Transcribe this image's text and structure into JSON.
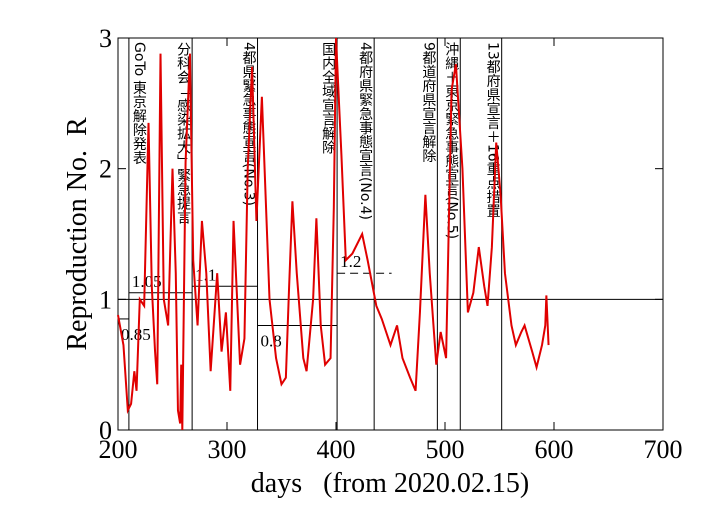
{
  "chart_data": {
    "type": "line",
    "xlabel": "days   (from 2020.02.15)",
    "ylabel": "Reproduction No.  R",
    "xlim": [
      200,
      700
    ],
    "xticks": [
      200,
      300,
      400,
      500,
      600,
      700
    ],
    "ylim": [
      0,
      3
    ],
    "yticks": [
      0,
      1,
      2,
      3
    ],
    "reference_line": 1,
    "series": [
      {
        "color": "#e00000",
        "x": [
          200,
          205,
          209,
          212,
          215,
          217,
          220,
          224,
          228,
          231,
          234,
          236,
          239,
          242,
          246,
          250,
          253,
          255,
          257,
          258,
          259,
          262,
          266,
          269,
          273,
          277,
          281,
          285,
          291,
          295,
          299,
          303,
          306,
          312,
          316,
          319,
          323,
          327,
          332,
          339,
          345,
          350,
          354,
          357,
          360,
          364,
          370,
          373,
          379,
          382,
          386,
          390,
          395,
          398,
          400,
          405,
          409,
          415,
          424,
          429,
          437,
          442,
          450,
          456,
          461,
          468,
          473,
          477,
          482,
          486,
          492,
          496,
          501,
          506,
          510,
          516,
          521,
          526,
          531,
          536,
          539,
          543,
          547,
          551,
          555,
          561,
          565,
          570,
          573,
          580,
          584,
          589,
          592,
          593,
          595
        ],
        "values": [
          0.88,
          0.65,
          0.15,
          0.2,
          0.45,
          0.3,
          1.0,
          0.95,
          2.35,
          1.1,
          0.6,
          0.35,
          2.88,
          1.0,
          0.8,
          2.0,
          1.2,
          0.15,
          0.05,
          0.5,
          0,
          2.05,
          2.88,
          1.3,
          0.8,
          1.6,
          1.2,
          0.45,
          1.2,
          0.6,
          0.9,
          0.3,
          1.6,
          0.5,
          0.7,
          2.0,
          2.78,
          1.6,
          2.55,
          1.0,
          0.55,
          0.35,
          0.4,
          1.1,
          1.75,
          1.2,
          0.55,
          0.45,
          1.0,
          1.62,
          0.8,
          0.5,
          0.55,
          1.7,
          3.0,
          2.1,
          1.3,
          1.35,
          1.5,
          1.3,
          0.95,
          0.85,
          0.65,
          0.8,
          0.55,
          0.4,
          0.3,
          0.9,
          1.8,
          1.2,
          0.5,
          0.75,
          0.55,
          2.6,
          2.8,
          2.0,
          0.9,
          1.05,
          1.4,
          1.1,
          0.95,
          1.4,
          2.2,
          1.8,
          1.2,
          0.8,
          0.65,
          0.75,
          0.8,
          0.6,
          0.48,
          0.65,
          0.8,
          1.03,
          0.65
        ]
      }
    ],
    "levels": [
      {
        "value": 0.85,
        "from": 200,
        "to": 210
      },
      {
        "value": 1.05,
        "from": 210,
        "to": 268
      },
      {
        "value": 1.1,
        "from": 268,
        "to": 328
      },
      {
        "value": 0.8,
        "from": 328,
        "to": 401
      },
      {
        "value": 1.2,
        "from": 401,
        "to": 451,
        "dashed": true
      }
    ],
    "events": [
      {
        "day": 210,
        "label": "GoTo 東京解除発表"
      },
      {
        "day": 268,
        "label": "分科会「感染拡大」緊急提言"
      },
      {
        "day": 328,
        "label": "4都県緊急事態宣言(No.3)"
      },
      {
        "day": 401,
        "label": "国内全域宣言解除"
      },
      {
        "day": 435,
        "label": "4都府県緊急事態宣言(No.4)"
      },
      {
        "day": 493,
        "label": "9都道府県宣言解除"
      },
      {
        "day": 514,
        "label": "沖縄＋東京緊急事態宣言(No.5)"
      },
      {
        "day": 552,
        "label": "13都府県宣言＋16重点措置"
      }
    ]
  }
}
